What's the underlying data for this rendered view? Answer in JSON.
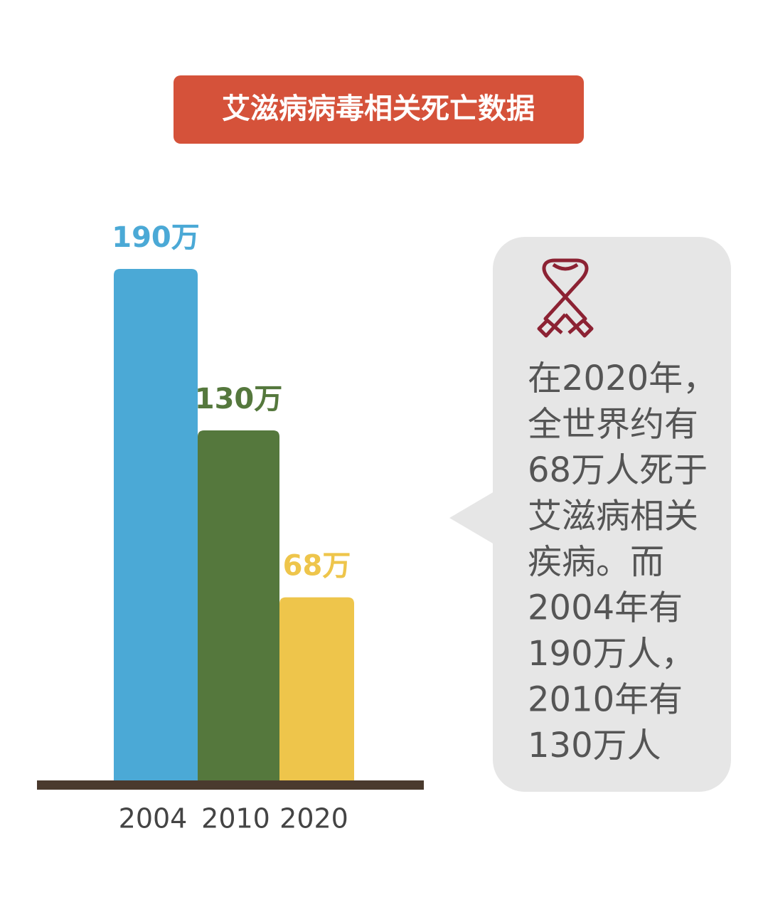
{
  "chart_data": {
    "type": "bar",
    "title": "艾滋病病毒相关死亡数据",
    "categories": [
      "2004",
      "2010",
      "2020"
    ],
    "values": [
      190,
      130,
      68
    ],
    "value_labels": [
      "190万",
      "130万",
      "68万"
    ],
    "colors": [
      "#4ba9d6",
      "#55783d",
      "#eec54b"
    ]
  },
  "callout": {
    "lines": [
      "在2020年，",
      "全世界约有",
      "68万人死于",
      "艾滋病相关",
      "疾病。而",
      "2004年有",
      "190万人，",
      "2010年有",
      "130万人"
    ]
  }
}
